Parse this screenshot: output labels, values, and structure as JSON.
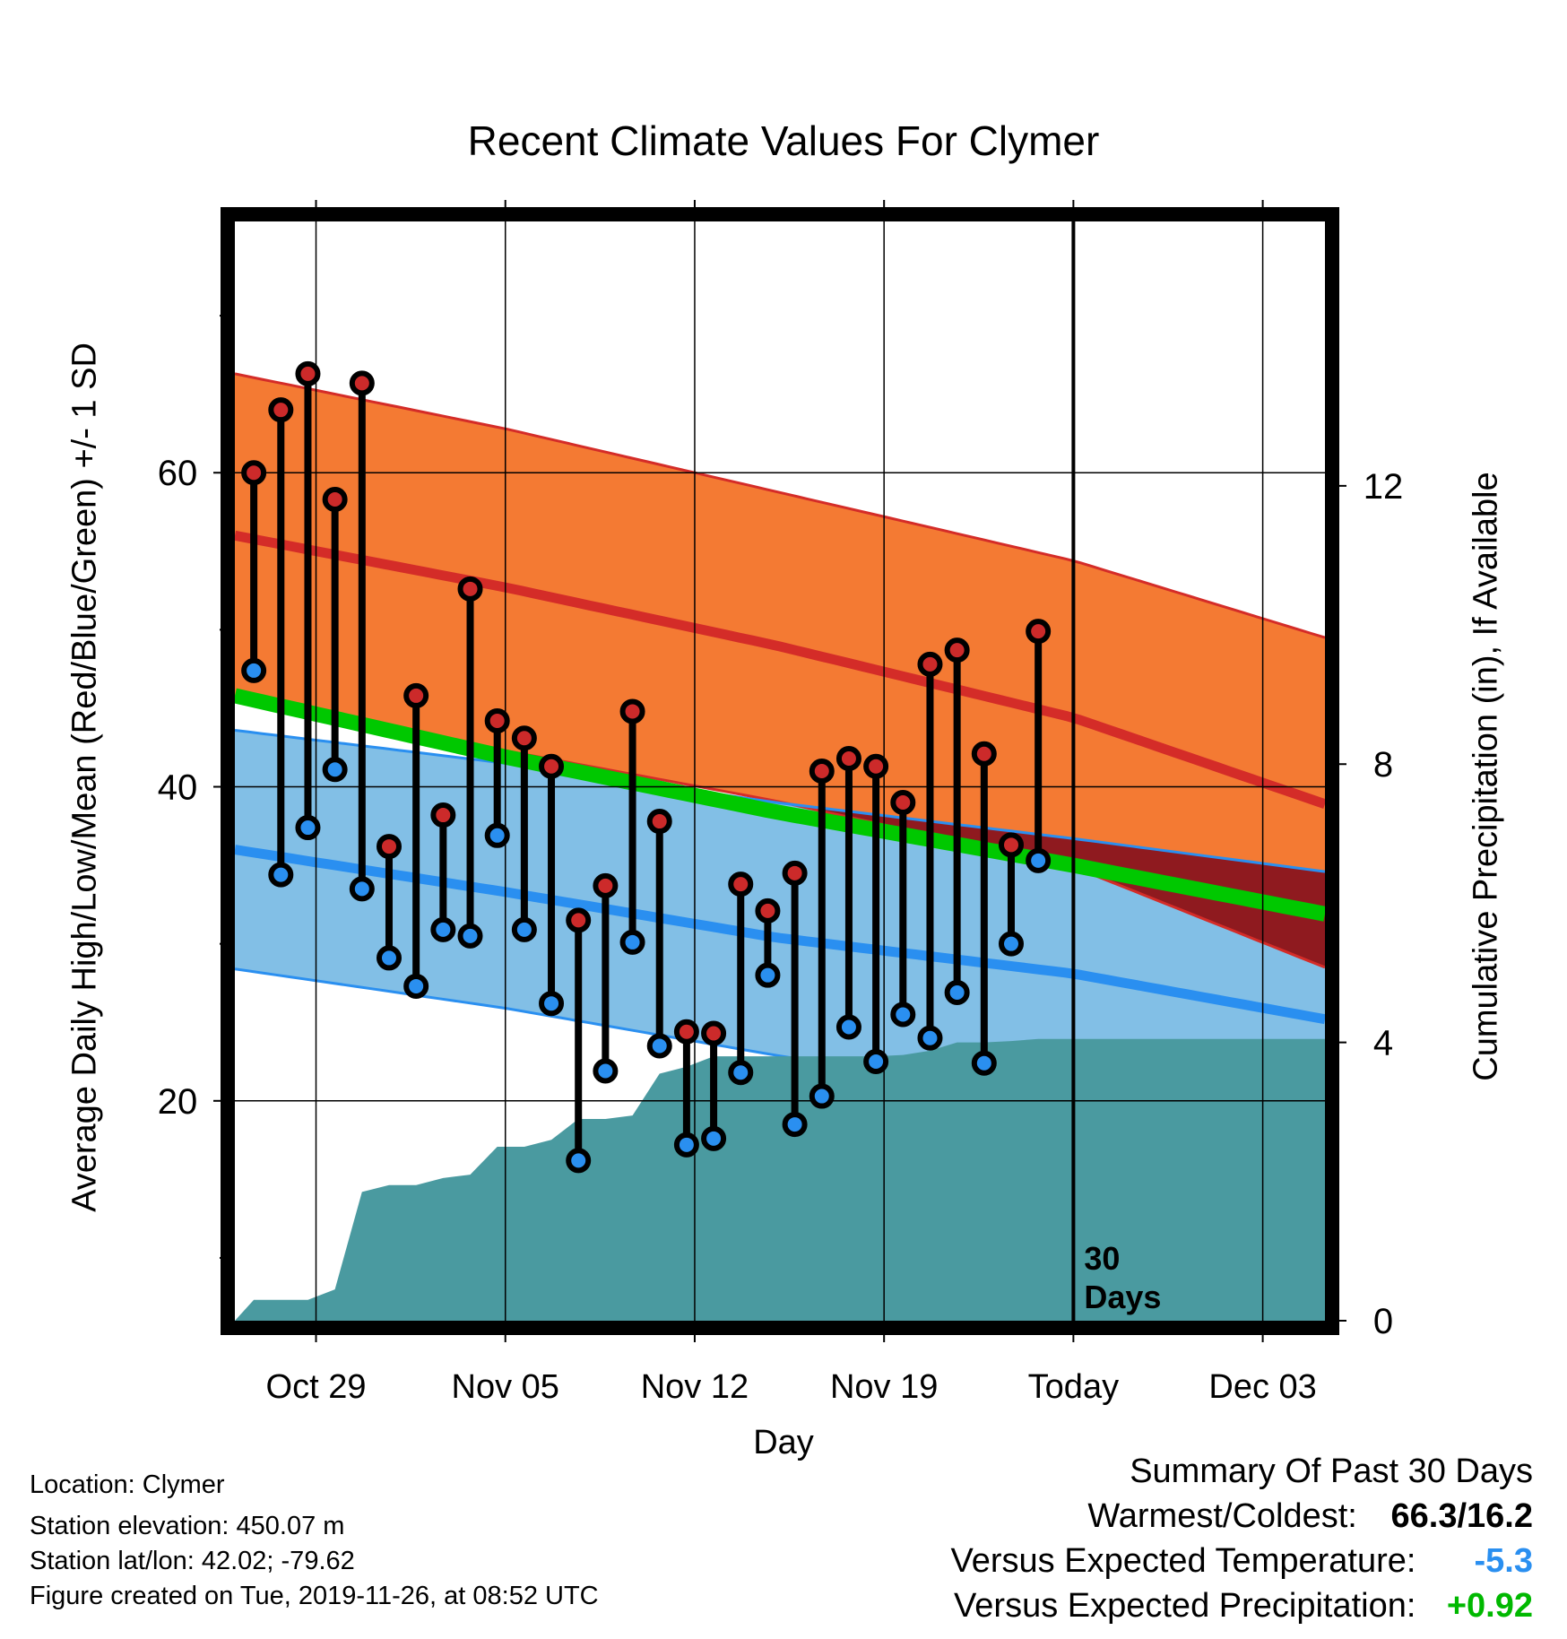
{
  "chart_data": {
    "type": "line",
    "title": "Recent Climate Values For Clymer",
    "xlabel": "Day",
    "ylabel_left": "Average Daily High/Low/Mean (Red/Blue/Green) +/- 1 SD",
    "ylabel_right": "Cumulative Precipitation (in), If Available",
    "x_ticks": [
      {
        "day": 3,
        "label": "Oct 29"
      },
      {
        "day": 10,
        "label": "Nov 05"
      },
      {
        "day": 17,
        "label": "Nov 12"
      },
      {
        "day": 24,
        "label": "Nov 19"
      },
      {
        "day": 31,
        "label": "Today"
      },
      {
        "day": 38,
        "label": "Dec 03"
      }
    ],
    "xlim": [
      0,
      40.3
    ],
    "ylim_left": [
      6,
      76
    ],
    "y_ticks_left": [
      60,
      40,
      20
    ],
    "y_minor_left": [
      70,
      50,
      30,
      10
    ],
    "ylim_right": [
      0,
      15.8
    ],
    "y_ticks_right": [
      12,
      8,
      4,
      0
    ],
    "today_label": "30\nDays",
    "normal_high": {
      "x": [
        0,
        10,
        20,
        31,
        40.3
      ],
      "mean": [
        56,
        52.7,
        49,
        44.4,
        38.9
      ],
      "upper": [
        66.3,
        62.8,
        58.8,
        54.4,
        49.5
      ],
      "lower": [
        45.7,
        42.3,
        39.1,
        34.9,
        28.5
      ]
    },
    "normal_low": {
      "x": [
        0,
        10,
        20,
        31,
        40.3
      ],
      "mean": [
        36,
        33.3,
        30.4,
        28.1,
        25.2
      ],
      "upper": [
        43.6,
        41.5,
        39,
        36.7,
        34.6
      ],
      "lower": [
        28.4,
        25.9,
        22.9,
        19.9,
        17.6
      ]
    },
    "normal_mean": {
      "x": [
        0,
        10,
        20,
        31,
        40.3
      ],
      "values": [
        45.8,
        41.9,
        38.4,
        35,
        31.9
      ]
    },
    "observed": {
      "day": [
        0.7,
        1.7,
        2.7,
        3.7,
        4.7,
        5.7,
        6.7,
        7.7,
        8.7,
        9.7,
        10.7,
        11.7,
        12.7,
        13.7,
        14.7,
        15.7,
        16.7,
        17.7,
        18.7,
        19.7,
        20.7,
        21.7,
        22.7,
        23.7,
        24.7,
        25.7,
        26.7,
        27.7,
        28.7,
        29.7
      ],
      "high": [
        60,
        64,
        66.3,
        58.3,
        65.7,
        36.2,
        45.8,
        38.2,
        52.6,
        44.2,
        43.1,
        41.3,
        31.5,
        33.7,
        44.8,
        37.8,
        24.4,
        24.3,
        33.8,
        32.1,
        34.5,
        41,
        41.8,
        41.3,
        39,
        47.8,
        48.7,
        42.1,
        36.3,
        49.9
      ],
      "low": [
        47.4,
        34.4,
        37.4,
        41.1,
        33.5,
        29.1,
        27.3,
        30.9,
        30.5,
        36.9,
        30.9,
        26.2,
        16.2,
        21.9,
        30.1,
        23.5,
        17.2,
        17.6,
        21.8,
        28,
        18.5,
        20.3,
        24.7,
        22.5,
        25.5,
        24,
        26.9,
        22.4,
        30,
        35.3
      ]
    },
    "precipitation": {
      "day": [
        0,
        0.7,
        1.7,
        2.7,
        3.7,
        4.7,
        5.7,
        6.7,
        7.7,
        8.7,
        9.7,
        10.7,
        11.7,
        12.7,
        13.7,
        14.7,
        15.7,
        16.7,
        17.7,
        18.7,
        19.7,
        20.7,
        21.7,
        22.7,
        23.7,
        24.7,
        25.7,
        26.7,
        27.7,
        28.7,
        29.7,
        30.3,
        40.3
      ],
      "cumulative": [
        0,
        0.3,
        0.3,
        0.3,
        0.45,
        1.85,
        1.95,
        1.95,
        2.05,
        2.1,
        2.5,
        2.5,
        2.6,
        2.9,
        2.9,
        2.95,
        3.55,
        3.65,
        3.8,
        3.8,
        3.8,
        3.8,
        3.8,
        3.8,
        3.8,
        3.82,
        3.88,
        4.0,
        4.0,
        4.02,
        4.05,
        4.05,
        4.05
      ]
    },
    "colors": {
      "high_band": "#f47a33",
      "high_line": "#d42c28",
      "low_band": "#82bfe6",
      "low_line": "#2a8ff0",
      "mean_line": "#00c800",
      "overlap": "#8f1a1f",
      "precip": "#4a9aa0",
      "high_dot": "#cc2a2a",
      "low_dot": "#2a8ff0"
    }
  },
  "location": "Location: Clymer",
  "elevation": "Station elevation: 450.07 m",
  "latlon": "Station lat/lon: 42.02; -79.62",
  "created": "Figure created on Tue, 2019-11-26, at 08:52 UTC",
  "summary": {
    "heading": "Summary Of Past 30 Days",
    "warm_cold_label": "Warmest/Coldest:",
    "warm_cold_value": "66.3/16.2",
    "temp_label": "Versus Expected Temperature:",
    "temp_value": "-5.3",
    "temp_color": "#2a8ff0",
    "precip_label": "Versus Expected Precipitation:",
    "precip_value": "+0.92",
    "precip_color": "#00b800"
  }
}
